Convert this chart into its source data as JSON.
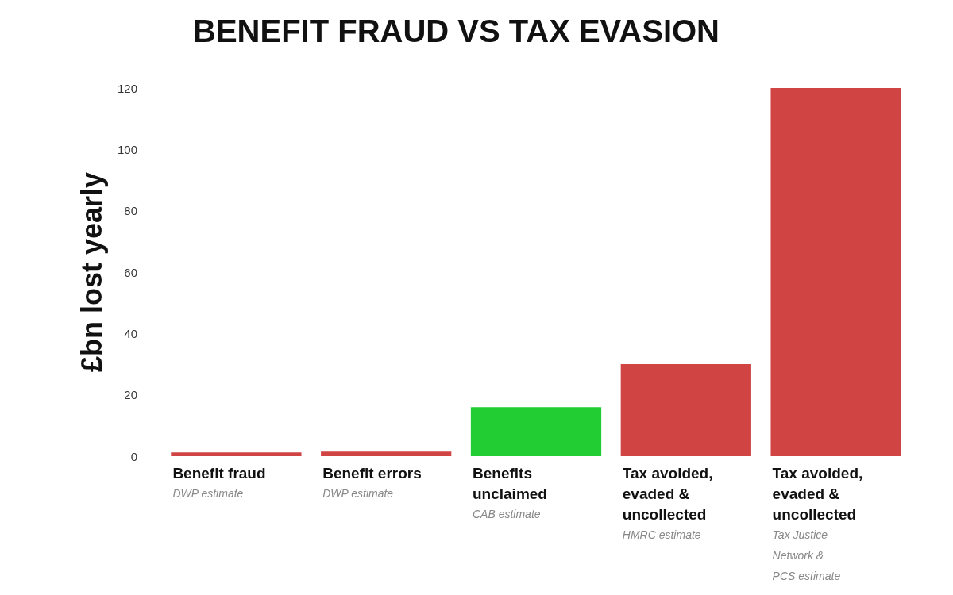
{
  "chart_data": {
    "type": "bar",
    "title": "BENEFIT FRAUD VS TAX EVASION",
    "ylabel": "£bn lost yearly",
    "categories": [
      "Benefit fraud\n\nDWP estimate",
      "Benefit errors\n\nDWP estimate",
      "Benefits\nunclaimed\n\nCAB estimate",
      "Tax avoided,\nevaded &\nuncollected\n\nHMRC estimate",
      "Tax avoided,\nevaded &\nuncollected\n\nTax Justice\nNetwork &\nPCS estimate"
    ],
    "values": [
      1.2,
      1.5,
      16,
      30,
      120
    ],
    "colors": [
      "#d04444",
      "#d04444",
      "#22cc33",
      "#d04444",
      "#d04444"
    ],
    "ylim": [
      0,
      120
    ],
    "yticks": [
      0,
      20,
      40,
      60,
      80,
      100,
      120
    ]
  }
}
